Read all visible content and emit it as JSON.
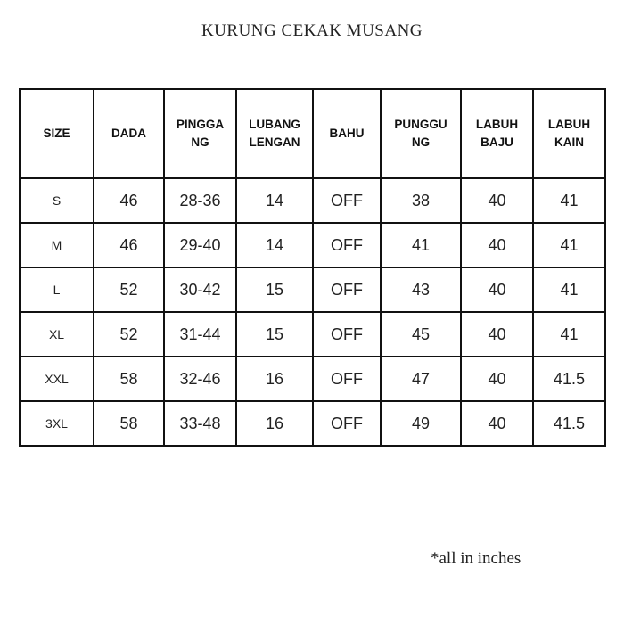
{
  "title": "KURUNG CEKAK MUSANG",
  "table": {
    "headers": [
      "SIZE",
      "DADA",
      "PINGGA\nNG",
      "LUBANG\nLENGAN",
      "BAHU",
      "PUNGGU\nNG",
      "LABUH\nBAJU",
      "LABUH\nKAIN"
    ],
    "rows": [
      [
        "S",
        "46",
        "28-36",
        "14",
        "OFF",
        "38",
        "40",
        "41"
      ],
      [
        "M",
        "46",
        "29-40",
        "14",
        "OFF",
        "41",
        "40",
        "41"
      ],
      [
        "L",
        "52",
        "30-42",
        "15",
        "OFF",
        "43",
        "40",
        "41"
      ],
      [
        "XL",
        "52",
        "31-44",
        "15",
        "OFF",
        "45",
        "40",
        "41"
      ],
      [
        "XXL",
        "58",
        "32-46",
        "16",
        "OFF",
        "47",
        "40",
        "41.5"
      ],
      [
        "3XL",
        "58",
        "33-48",
        "16",
        "OFF",
        "49",
        "40",
        "41.5"
      ]
    ]
  },
  "note": "*all in inches"
}
